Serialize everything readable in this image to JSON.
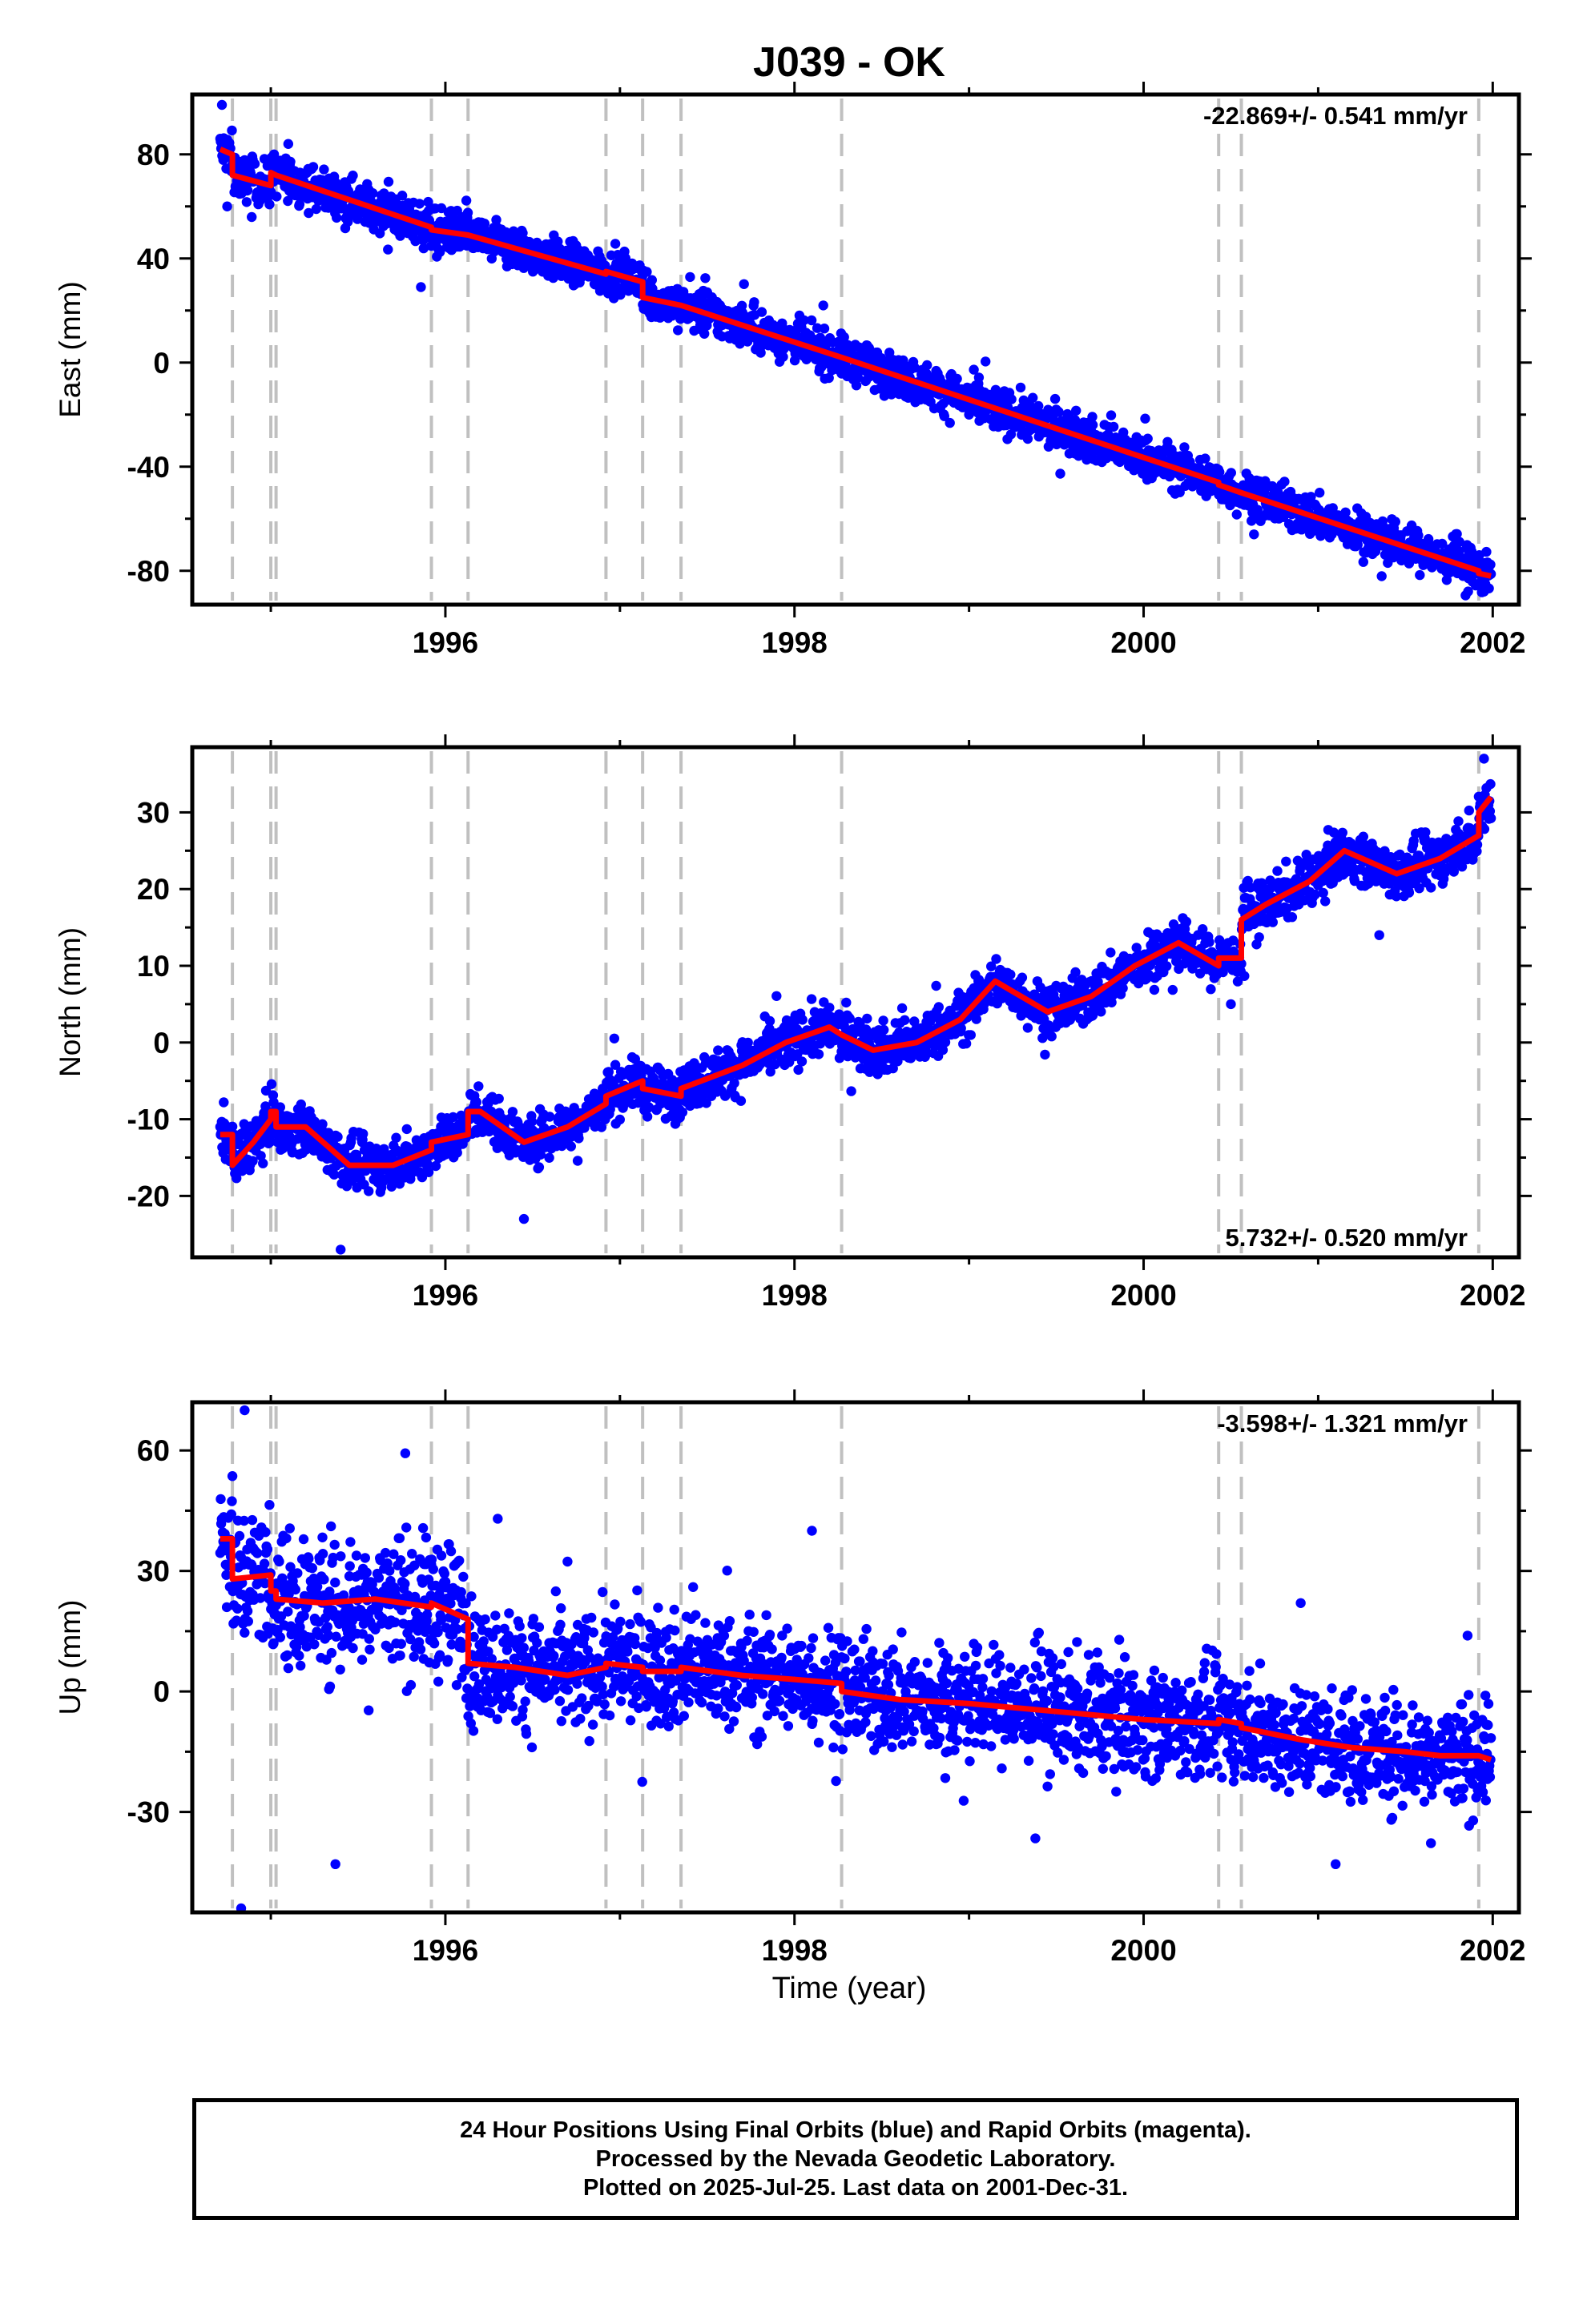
{
  "title": "J039 - OK",
  "xlabel": "Time (year)",
  "colors": {
    "points": "#0000ff",
    "model": "#ff0000",
    "event_lines": "#c0c0c0",
    "frame": "#000000"
  },
  "footer": {
    "lines": [
      "24 Hour Positions Using Final Orbits (blue) and Rapid Orbits (magenta).",
      "Processed by the Nevada Geodetic Laboratory.",
      "Plotted on 2025-Jul-25. Last data on 2001-Dec-31."
    ]
  },
  "chart_data": [
    {
      "type": "scatter",
      "component": "East",
      "ylabel": "East (mm)",
      "rate_label": "-22.869+/- 0.541 mm/yr",
      "rate_label_position": "top-right",
      "xlim": [
        1994.55,
        2002.15
      ],
      "ylim": [
        -93,
        103
      ],
      "xticks": [
        1996,
        1998,
        2000,
        2002
      ],
      "yticks": [
        -80,
        -40,
        0,
        40,
        80
      ],
      "event_lines_x": [
        1994.78,
        1995.0,
        1995.03,
        1995.92,
        1996.13,
        1996.92,
        1997.13,
        1997.35,
        1998.27,
        2000.43,
        2000.56,
        2001.92
      ],
      "model_line": {
        "x": [
          1994.71,
          1994.78,
          1994.78,
          1995.0,
          1995.0,
          1995.03,
          1995.03,
          1995.92,
          1995.92,
          1996.13,
          1996.13,
          1996.92,
          1996.92,
          1997.13,
          1997.13,
          1997.35,
          1997.35,
          1998.27,
          1998.27,
          2000.43,
          2000.43,
          2000.56,
          2000.56,
          2001.92,
          2001.92,
          2001.99
        ],
        "y": [
          82,
          80,
          72,
          68,
          73,
          72,
          72,
          52,
          51,
          49,
          49,
          34,
          35,
          31,
          25,
          22,
          22,
          2,
          2,
          -46,
          -47,
          -50,
          -50,
          -80,
          -81,
          -82
        ]
      },
      "points": {
        "x_start": 1994.71,
        "x_end": 2001.99,
        "approx_count": 2500,
        "sample": [
          {
            "x": 1994.72,
            "y": 99
          },
          {
            "x": 1994.75,
            "y": 60
          },
          {
            "x": 1995.1,
            "y": 84
          },
          {
            "x": 1995.86,
            "y": 29
          },
          {
            "x": 1997.5,
            "y": 27
          },
          {
            "x": 1999.0,
            "y": -20
          },
          {
            "x": 2001.0,
            "y": -60
          },
          {
            "x": 2001.95,
            "y": -88
          }
        ]
      }
    },
    {
      "type": "scatter",
      "component": "North",
      "ylabel": "North (mm)",
      "rate_label": "5.732+/- 0.520 mm/yr",
      "rate_label_position": "bottom-right",
      "xlim": [
        1994.55,
        2002.15
      ],
      "ylim": [
        -28,
        38.5
      ],
      "xticks": [
        1996,
        1998,
        2000,
        2002
      ],
      "yticks": [
        -20,
        -10,
        0,
        10,
        20,
        30
      ],
      "event_lines_x": [
        1994.78,
        1995.0,
        1995.03,
        1995.92,
        1996.13,
        1996.92,
        1997.13,
        1997.35,
        1998.27,
        2000.43,
        2000.56,
        2001.92
      ],
      "model_line": {
        "x": [
          1994.71,
          1994.78,
          1994.78,
          1994.9,
          1995.0,
          1995.0,
          1995.03,
          1995.03,
          1995.2,
          1995.45,
          1995.7,
          1995.92,
          1995.92,
          1996.13,
          1996.13,
          1996.2,
          1996.45,
          1996.7,
          1996.92,
          1996.92,
          1997.13,
          1997.13,
          1997.35,
          1997.35,
          1997.7,
          1997.95,
          1998.2,
          1998.27,
          1998.27,
          1998.45,
          1998.7,
          1998.95,
          1999.15,
          1999.45,
          1999.7,
          1999.95,
          2000.2,
          2000.43,
          2000.43,
          2000.56,
          2000.56,
          2000.7,
          2000.95,
          2001.15,
          2001.45,
          2001.7,
          2001.92,
          2001.92,
          2001.99
        ],
        "y": [
          -12,
          -12,
          -16,
          -13,
          -10,
          -9,
          -9,
          -11,
          -11,
          -16,
          -16,
          -14,
          -13,
          -12,
          -9,
          -9,
          -13,
          -11,
          -8,
          -7,
          -5,
          -6,
          -7,
          -6,
          -3,
          0,
          2,
          1,
          1,
          -1,
          0,
          3,
          8,
          4,
          6,
          10,
          13,
          10,
          11,
          11,
          16,
          18,
          21,
          25,
          22,
          24,
          27,
          30,
          32
        ]
      },
      "points": {
        "x_start": 1994.71,
        "x_end": 2001.99,
        "approx_count": 2500,
        "sample": [
          {
            "x": 1995.4,
            "y": -27
          },
          {
            "x": 1996.45,
            "y": -23
          },
          {
            "x": 2000.5,
            "y": 5
          },
          {
            "x": 2001.35,
            "y": 14
          },
          {
            "x": 2001.95,
            "y": 37
          }
        ]
      }
    },
    {
      "type": "scatter",
      "component": "Up",
      "ylabel": "Up (mm)",
      "rate_label": "-3.598+/- 1.321 mm/yr",
      "rate_label_position": "top-right",
      "xlim": [
        1994.55,
        2002.15
      ],
      "ylim": [
        -55,
        72
      ],
      "xticks": [
        1996,
        1998,
        2000,
        2002
      ],
      "yticks": [
        -30,
        0,
        30,
        60
      ],
      "event_lines_x": [
        1994.78,
        1995.0,
        1995.03,
        1995.92,
        1996.13,
        1996.92,
        1997.13,
        1997.35,
        1998.27,
        2000.43,
        2000.56,
        2001.92
      ],
      "model_line": {
        "x": [
          1994.71,
          1994.78,
          1994.78,
          1995.0,
          1995.0,
          1995.03,
          1995.03,
          1995.3,
          1995.6,
          1995.92,
          1995.92,
          1996.13,
          1996.13,
          1996.4,
          1996.7,
          1996.92,
          1996.92,
          1997.13,
          1997.13,
          1997.35,
          1997.35,
          1997.7,
          1998.0,
          1998.27,
          1998.27,
          1998.6,
          1999.0,
          1999.5,
          2000.0,
          2000.43,
          2000.43,
          2000.56,
          2000.56,
          2000.9,
          2001.2,
          2001.5,
          2001.7,
          2001.92,
          2001.92,
          2001.99
        ],
        "y": [
          38,
          38,
          28,
          29,
          25,
          25,
          23,
          22,
          23,
          21,
          22,
          18,
          7,
          6,
          4,
          6,
          7,
          6,
          5,
          5,
          6,
          4,
          3,
          2,
          0,
          -2,
          -3,
          -5,
          -7,
          -8,
          -7,
          -8,
          -9,
          -12,
          -14,
          -15,
          -16,
          -16,
          -16,
          -17
        ]
      },
      "points": {
        "x_start": 1994.71,
        "x_end": 2001.99,
        "approx_count": 2500,
        "sample": [
          {
            "x": 1994.85,
            "y": 70
          },
          {
            "x": 1994.83,
            "y": -54
          },
          {
            "x": 1995.37,
            "y": -43
          },
          {
            "x": 1996.3,
            "y": 43
          },
          {
            "x": 1998.1,
            "y": 40
          },
          {
            "x": 2000.9,
            "y": 22
          },
          {
            "x": 2001.1,
            "y": -43
          }
        ]
      }
    }
  ]
}
